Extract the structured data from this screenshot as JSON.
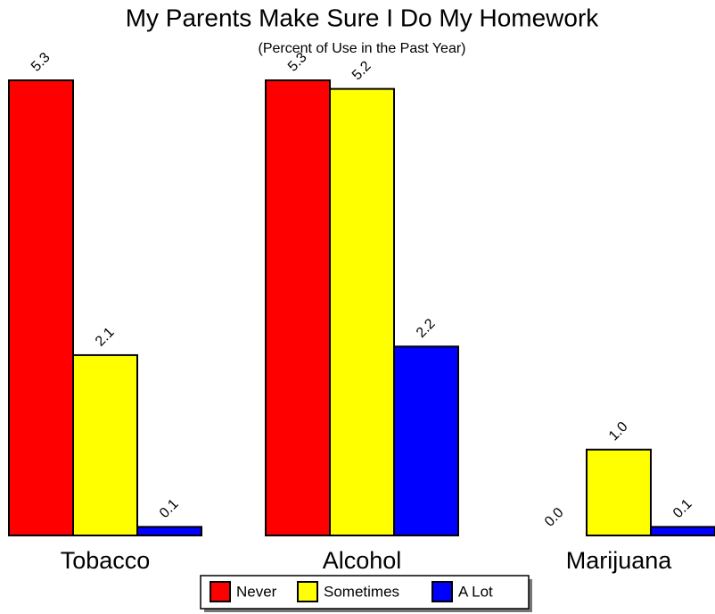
{
  "chart_data": {
    "type": "bar",
    "title": "My Parents Make Sure I Do My Homework",
    "subtitle": "(Percent of Use in the Past Year)",
    "categories": [
      "Tobacco",
      "Alcohol",
      "Marijuana"
    ],
    "series": [
      {
        "name": "Never",
        "color": "#ff0000",
        "values": [
          5.3,
          5.3,
          0.0
        ],
        "value_labels": [
          "5.3",
          "5.3",
          "0.0"
        ]
      },
      {
        "name": "Sometimes",
        "color": "#ffff00",
        "values": [
          2.1,
          5.2,
          1.0
        ],
        "value_labels": [
          "2.1",
          "5.2",
          "1.0"
        ]
      },
      {
        "name": "A Lot",
        "color": "#0000ff",
        "values": [
          0.1,
          2.2,
          0.1
        ],
        "value_labels": [
          "0.1",
          "2.2",
          "0.1"
        ]
      }
    ],
    "ylim": [
      0,
      5.3
    ],
    "legend": "bottom"
  }
}
